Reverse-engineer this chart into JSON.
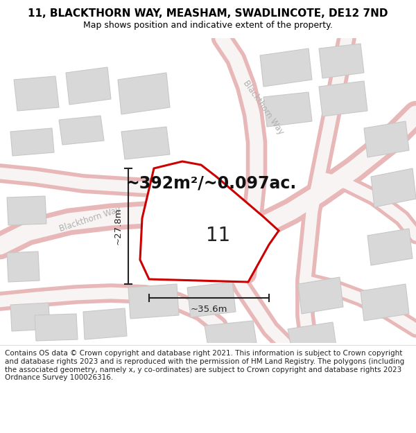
{
  "title": "11, BLACKTHORN WAY, MEASHAM, SWADLINCOTE, DE12 7ND",
  "subtitle": "Map shows position and indicative extent of the property.",
  "area_text": "~392m²/~0.097ac.",
  "dim_width": "~35.6m",
  "dim_height": "~27.8m",
  "plot_number": "11",
  "footer": "Contains OS data © Crown copyright and database right 2021. This information is subject to Crown copyright and database rights 2023 and is reproduced with the permission of HM Land Registry. The polygons (including the associated geometry, namely x, y co-ordinates) are subject to Crown copyright and database rights 2023 Ordnance Survey 100026316.",
  "map_bg": "#f2f0ee",
  "road_outline_color": "#e8b8b8",
  "road_fill_color": "#f8f4f4",
  "building_fill": "#d8d8d8",
  "building_edge": "#c8c8c8",
  "plot_edge": "#cc0000",
  "plot_fill": "#ffffff",
  "dim_color": "#222222",
  "street_label_color": "#b0b0b0",
  "title_fontsize": 11,
  "subtitle_fontsize": 9,
  "area_fontsize": 17,
  "plot_num_fontsize": 20,
  "footer_fontsize": 7.5
}
